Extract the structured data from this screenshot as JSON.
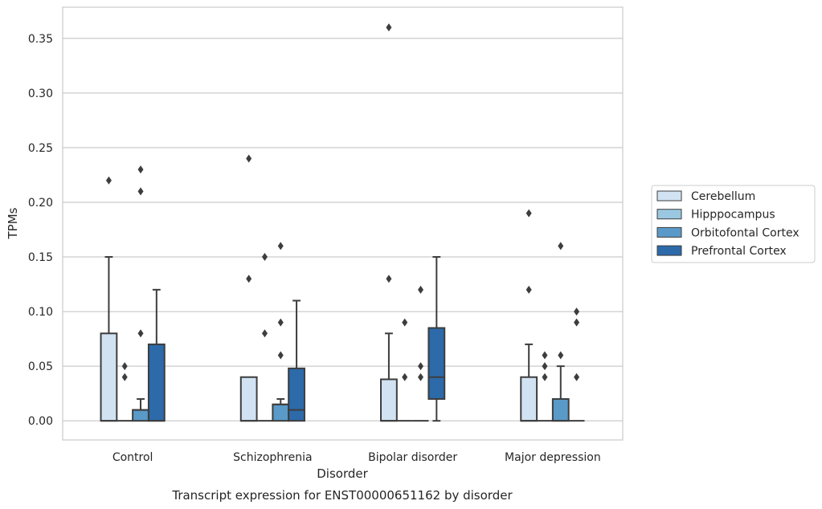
{
  "caption": "Transcript expression for ENST00000651162 by disorder",
  "chart_data": {
    "type": "box",
    "xlabel": "Disorder",
    "ylabel": "TPMs",
    "ylim": [
      -0.0175,
      0.3785
    ],
    "yticks": [
      "0.00",
      "0.05",
      "0.10",
      "0.15",
      "0.20",
      "0.25",
      "0.30",
      "0.35"
    ],
    "grid": true,
    "legend_position": "right",
    "categories": [
      "Control",
      "Schizophrenia",
      "Bipolar disorder",
      "Major depression"
    ],
    "series": [
      {
        "name": "Cerebellum",
        "color": "#d1e2f2",
        "boxes": [
          {
            "q1": 0,
            "median": 0,
            "q3": 0.08,
            "whisker_low": 0,
            "whisker_high": 0.15,
            "outliers": [
              0.22
            ]
          },
          {
            "q1": 0,
            "median": 0,
            "q3": 0.04,
            "whisker_low": 0,
            "whisker_high": 0.04,
            "outliers": [
              0.24,
              0.13
            ]
          },
          {
            "q1": 0,
            "median": 0,
            "q3": 0.038,
            "whisker_low": 0,
            "whisker_high": 0.08,
            "outliers": [
              0.36,
              0.13
            ]
          },
          {
            "q1": 0,
            "median": 0,
            "q3": 0.04,
            "whisker_low": 0,
            "whisker_high": 0.07,
            "outliers": [
              0.19,
              0.12
            ]
          }
        ]
      },
      {
        "name": "Hipppocampus",
        "color": "#9ac8e0",
        "boxes": [
          {
            "q1": 0,
            "median": 0,
            "q3": 0,
            "whisker_low": 0,
            "whisker_high": 0,
            "outliers": [
              0.05,
              0.04
            ]
          },
          {
            "q1": 0,
            "median": 0,
            "q3": 0,
            "whisker_low": 0,
            "whisker_high": 0,
            "outliers": [
              0.15,
              0.08
            ]
          },
          {
            "q1": 0,
            "median": 0,
            "q3": 0,
            "whisker_low": 0,
            "whisker_high": 0,
            "outliers": [
              0.09,
              0.04
            ]
          },
          {
            "q1": 0,
            "median": 0,
            "q3": 0,
            "whisker_low": 0,
            "whisker_high": 0,
            "outliers": [
              0.06,
              0.05,
              0.04
            ]
          }
        ]
      },
      {
        "name": "Orbitofontal Cortex",
        "color": "#5a9ac8",
        "boxes": [
          {
            "q1": 0,
            "median": 0.01,
            "q3": 0.01,
            "whisker_low": 0,
            "whisker_high": 0.02,
            "outliers": [
              0.23,
              0.21,
              0.08
            ]
          },
          {
            "q1": 0,
            "median": 0.015,
            "q3": 0.015,
            "whisker_low": 0,
            "whisker_high": 0.02,
            "outliers": [
              0.16,
              0.09,
              0.06
            ]
          },
          {
            "q1": 0,
            "median": 0,
            "q3": 0,
            "whisker_low": 0,
            "whisker_high": 0,
            "outliers": [
              0.12,
              0.05,
              0.04
            ]
          },
          {
            "q1": 0,
            "median": 0,
            "q3": 0.02,
            "whisker_low": 0,
            "whisker_high": 0.05,
            "outliers": [
              0.16,
              0.06
            ]
          }
        ]
      },
      {
        "name": "Prefrontal Cortex",
        "color": "#2c6aaa",
        "boxes": [
          {
            "q1": 0,
            "median": 0,
            "q3": 0.07,
            "whisker_low": 0,
            "whisker_high": 0.12,
            "outliers": []
          },
          {
            "q1": 0,
            "median": 0.01,
            "q3": 0.048,
            "whisker_low": 0,
            "whisker_high": 0.11,
            "outliers": []
          },
          {
            "q1": 0.02,
            "median": 0.04,
            "q3": 0.085,
            "whisker_low": 0,
            "whisker_high": 0.15,
            "outliers": []
          },
          {
            "q1": 0,
            "median": 0,
            "q3": 0,
            "whisker_low": 0,
            "whisker_high": 0,
            "outliers": [
              0.1,
              0.09,
              0.04
            ]
          }
        ]
      }
    ]
  }
}
